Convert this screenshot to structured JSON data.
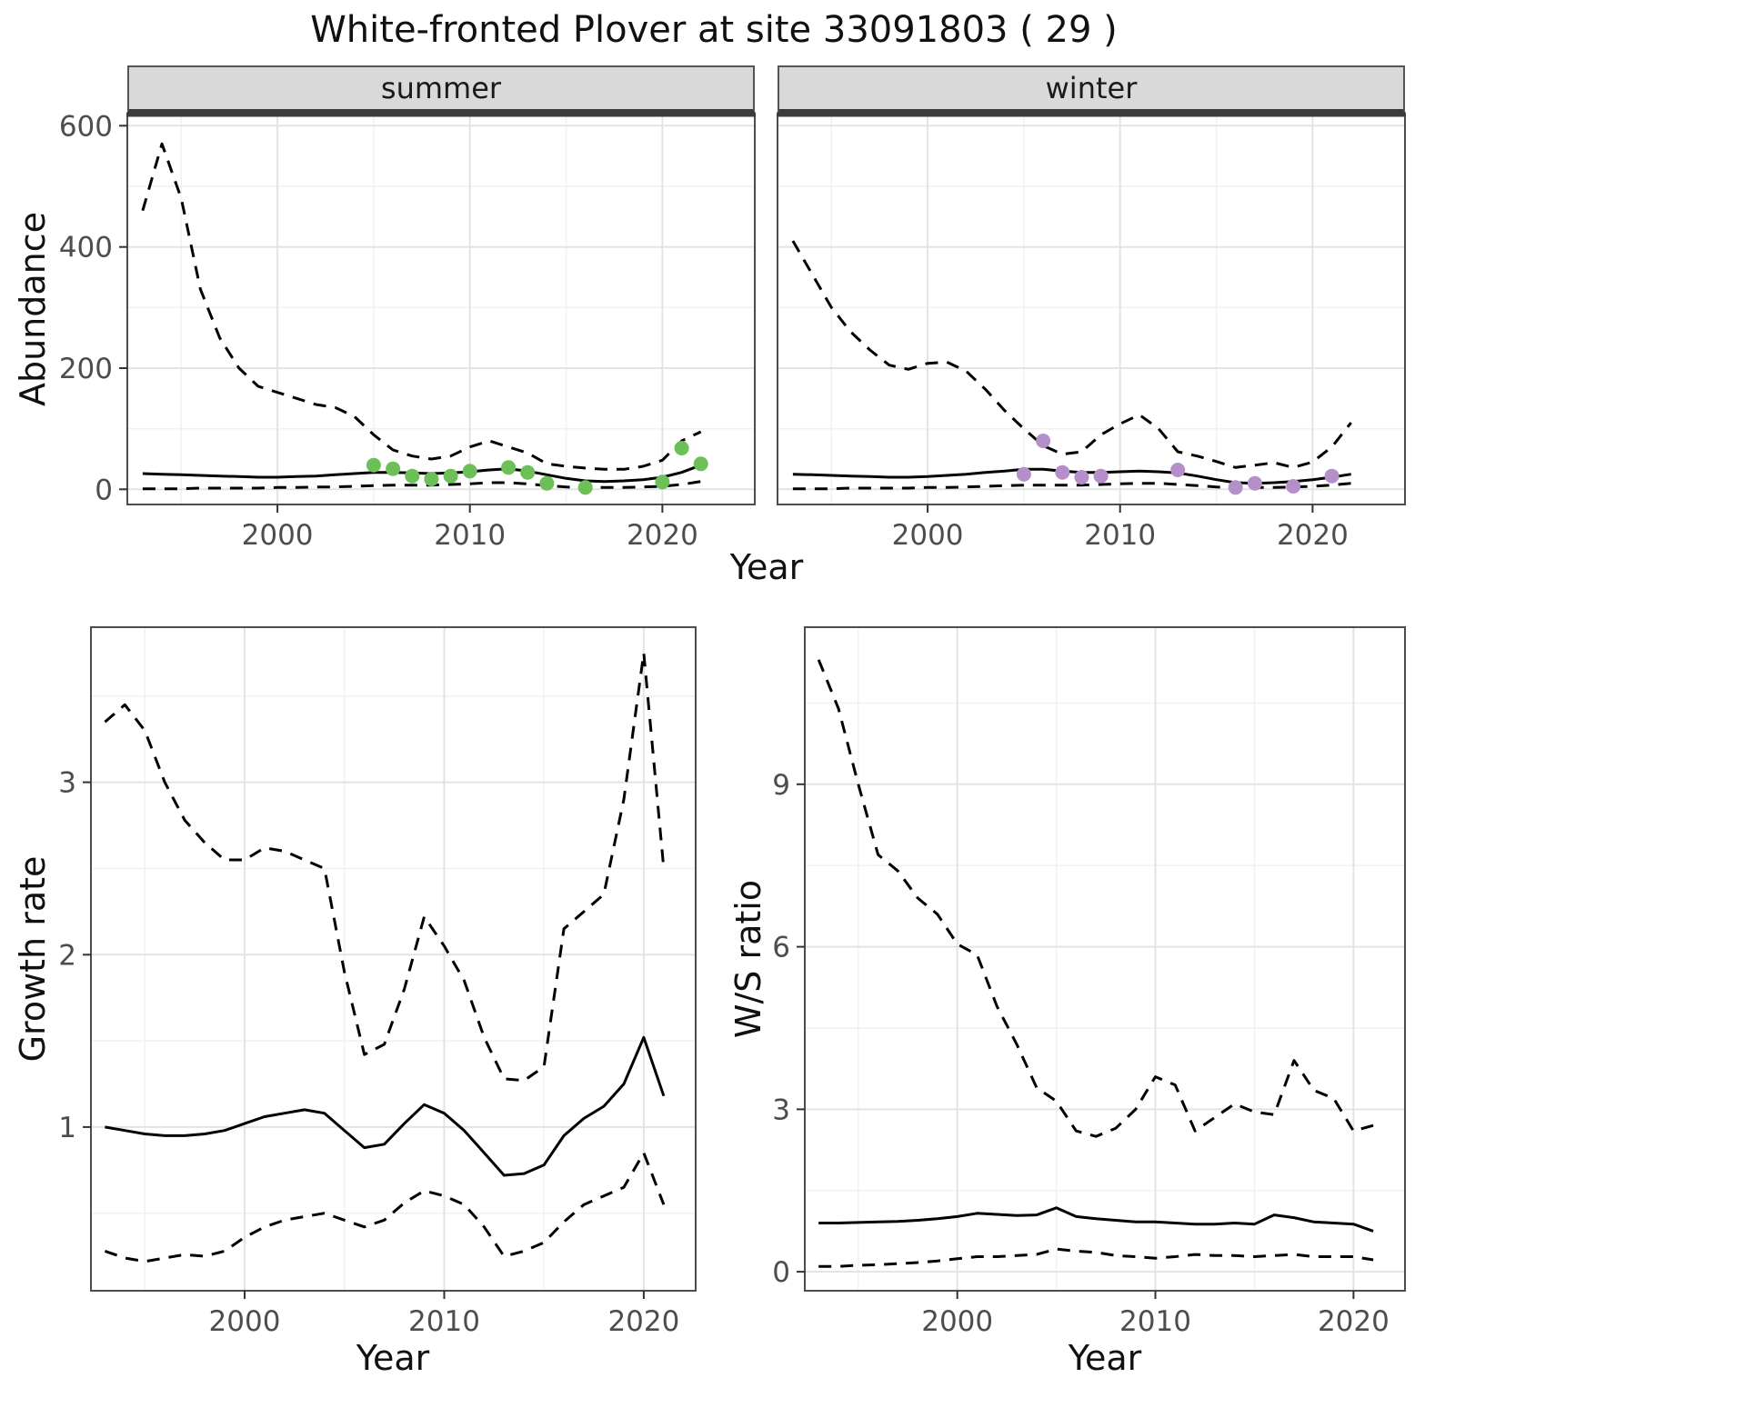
{
  "title": "White-fronted Plover at site 33091803 ( 29 )",
  "colors": {
    "summer_point": "#6dbf57",
    "winter_point": "#b58fc9",
    "line": "#000000",
    "strip_bg": "#d9d9d9",
    "strip_border": "#545454",
    "panel_border": "#4d4d4d",
    "grid_major": "#e3e3e3",
    "grid_minor": "#f1f1f1",
    "tick_text": "#4d4d4d"
  },
  "chart_data": [
    {
      "type": "line",
      "name": "abundance-summer",
      "facet_label": "summer",
      "xlabel": "Year",
      "ylabel": "Abundance",
      "xticks": [
        2000,
        2010,
        2020
      ],
      "yticks": [
        0,
        200,
        400,
        600
      ],
      "xlim": [
        1992,
        2025
      ],
      "ylim": [
        -25,
        620
      ],
      "grid": true,
      "years": [
        1993,
        1994,
        1995,
        1996,
        1997,
        1998,
        1999,
        2000,
        2001,
        2002,
        2003,
        2004,
        2005,
        2006,
        2007,
        2008,
        2009,
        2010,
        2011,
        2012,
        2013,
        2014,
        2015,
        2016,
        2017,
        2018,
        2019,
        2020,
        2021,
        2022
      ],
      "series": [
        {
          "name": "fit",
          "style": "solid",
          "values": [
            26,
            25,
            24,
            23,
            22,
            21,
            20,
            20,
            21,
            22,
            24,
            26,
            28,
            28,
            27,
            26,
            27,
            29,
            32,
            34,
            30,
            24,
            18,
            14,
            13,
            14,
            16,
            20,
            28,
            40
          ]
        },
        {
          "name": "upper-ci",
          "style": "dashed",
          "values": [
            460,
            570,
            480,
            330,
            250,
            200,
            170,
            160,
            150,
            140,
            135,
            120,
            90,
            65,
            55,
            50,
            55,
            70,
            80,
            70,
            60,
            42,
            38,
            35,
            33,
            33,
            38,
            48,
            80,
            95
          ]
        },
        {
          "name": "lower-ci",
          "style": "dashed",
          "values": [
            1,
            1,
            1,
            2,
            2,
            2,
            2,
            3,
            3,
            4,
            4,
            5,
            6,
            7,
            7,
            7,
            8,
            9,
            11,
            11,
            9,
            6,
            4,
            3,
            3,
            3,
            4,
            5,
            8,
            13
          ]
        }
      ],
      "points": {
        "name": "observed-counts",
        "color": "#6dbf57",
        "x": [
          2005,
          2006,
          2007,
          2008,
          2009,
          2010,
          2012,
          2013,
          2014,
          2016,
          2020,
          2021,
          2022
        ],
        "y": [
          40,
          34,
          22,
          17,
          22,
          30,
          36,
          28,
          10,
          3,
          12,
          68,
          42
        ]
      }
    },
    {
      "type": "line",
      "name": "abundance-winter",
      "facet_label": "winter",
      "xlabel": "Year",
      "ylabel": "Abundance",
      "xticks": [
        2000,
        2010,
        2020
      ],
      "yticks": [
        0,
        200,
        400,
        600
      ],
      "xlim": [
        1992,
        2025
      ],
      "ylim": [
        -25,
        620
      ],
      "grid": true,
      "years": [
        1993,
        1994,
        1995,
        1996,
        1997,
        1998,
        1999,
        2000,
        2001,
        2002,
        2003,
        2004,
        2005,
        2006,
        2007,
        2008,
        2009,
        2010,
        2011,
        2012,
        2013,
        2014,
        2015,
        2016,
        2017,
        2018,
        2019,
        2020,
        2021,
        2022
      ],
      "series": [
        {
          "name": "fit",
          "style": "solid",
          "values": [
            25,
            24,
            23,
            22,
            21,
            20,
            20,
            21,
            23,
            25,
            28,
            30,
            33,
            33,
            30,
            28,
            28,
            29,
            30,
            29,
            27,
            22,
            16,
            11,
            10,
            11,
            13,
            16,
            20,
            25
          ]
        },
        {
          "name": "upper-ci",
          "style": "dashed",
          "values": [
            410,
            355,
            300,
            260,
            230,
            205,
            198,
            208,
            210,
            195,
            165,
            130,
            100,
            72,
            58,
            62,
            90,
            108,
            123,
            100,
            62,
            55,
            46,
            36,
            40,
            44,
            36,
            45,
            70,
            110
          ]
        },
        {
          "name": "lower-ci",
          "style": "dashed",
          "values": [
            1,
            1,
            1,
            2,
            2,
            2,
            2,
            3,
            3,
            4,
            5,
            6,
            7,
            7,
            7,
            7,
            8,
            9,
            10,
            10,
            8,
            6,
            4,
            3,
            3,
            3,
            4,
            5,
            7,
            10
          ]
        }
      ],
      "points": {
        "name": "observed-counts",
        "color": "#b58fc9",
        "x": [
          2005,
          2006,
          2007,
          2008,
          2009,
          2013,
          2016,
          2017,
          2019,
          2021
        ],
        "y": [
          25,
          80,
          28,
          20,
          22,
          32,
          3,
          10,
          5,
          22
        ]
      }
    },
    {
      "type": "line",
      "name": "growth-rate",
      "xlabel": "Year",
      "ylabel": "Growth rate",
      "xticks": [
        2000,
        2010,
        2020
      ],
      "yticks": [
        1,
        2,
        3
      ],
      "xlim": [
        1992,
        2023
      ],
      "ylim": [
        0.05,
        3.9
      ],
      "grid": true,
      "years": [
        1993,
        1994,
        1995,
        1996,
        1997,
        1998,
        1999,
        2000,
        2001,
        2002,
        2003,
        2004,
        2005,
        2006,
        2007,
        2008,
        2009,
        2010,
        2011,
        2012,
        2013,
        2014,
        2015,
        2016,
        2017,
        2018,
        2019,
        2020,
        2021
      ],
      "series": [
        {
          "name": "fit",
          "style": "solid",
          "values": [
            1.0,
            0.98,
            0.96,
            0.95,
            0.95,
            0.96,
            0.98,
            1.02,
            1.06,
            1.08,
            1.1,
            1.08,
            0.98,
            0.88,
            0.9,
            1.02,
            1.13,
            1.08,
            0.98,
            0.85,
            0.72,
            0.73,
            0.78,
            0.95,
            1.05,
            1.12,
            1.25,
            1.52,
            1.18
          ]
        },
        {
          "name": "upper-ci",
          "style": "dashed",
          "values": [
            3.35,
            3.45,
            3.3,
            3.0,
            2.78,
            2.65,
            2.55,
            2.55,
            2.62,
            2.6,
            2.55,
            2.5,
            1.9,
            1.42,
            1.48,
            1.8,
            2.22,
            2.05,
            1.85,
            1.52,
            1.28,
            1.27,
            1.35,
            2.15,
            2.25,
            2.35,
            2.9,
            3.75,
            2.5
          ]
        },
        {
          "name": "lower-ci",
          "style": "dashed",
          "values": [
            0.28,
            0.24,
            0.22,
            0.24,
            0.26,
            0.25,
            0.28,
            0.36,
            0.42,
            0.46,
            0.48,
            0.5,
            0.46,
            0.42,
            0.46,
            0.56,
            0.63,
            0.6,
            0.55,
            0.42,
            0.25,
            0.28,
            0.33,
            0.45,
            0.55,
            0.6,
            0.65,
            0.85,
            0.55
          ]
        }
      ]
    },
    {
      "type": "line",
      "name": "ws-ratio",
      "xlabel": "Year",
      "ylabel": "W/S ratio",
      "xticks": [
        2000,
        2010,
        2020
      ],
      "yticks": [
        0,
        3,
        6,
        9
      ],
      "xlim": [
        1992,
        2023
      ],
      "ylim": [
        -0.35,
        11.9
      ],
      "grid": true,
      "years": [
        1993,
        1994,
        1995,
        1996,
        1997,
        1998,
        1999,
        2000,
        2001,
        2002,
        2003,
        2004,
        2005,
        2006,
        2007,
        2008,
        2009,
        2010,
        2011,
        2012,
        2013,
        2014,
        2015,
        2016,
        2017,
        2018,
        2019,
        2020,
        2021
      ],
      "series": [
        {
          "name": "fit",
          "style": "solid",
          "values": [
            0.9,
            0.9,
            0.91,
            0.92,
            0.93,
            0.95,
            0.98,
            1.02,
            1.08,
            1.06,
            1.04,
            1.05,
            1.18,
            1.02,
            0.98,
            0.95,
            0.92,
            0.92,
            0.9,
            0.88,
            0.88,
            0.9,
            0.88,
            1.05,
            1.0,
            0.92,
            0.9,
            0.88,
            0.75
          ]
        },
        {
          "name": "upper-ci",
          "style": "dashed",
          "values": [
            11.3,
            10.4,
            9.0,
            7.7,
            7.4,
            6.9,
            6.6,
            6.05,
            5.85,
            4.9,
            4.2,
            3.4,
            3.15,
            2.6,
            2.5,
            2.65,
            3.0,
            3.6,
            3.45,
            2.6,
            2.85,
            3.1,
            2.95,
            2.9,
            3.9,
            3.35,
            3.2,
            2.6,
            2.7
          ]
        },
        {
          "name": "lower-ci",
          "style": "dashed",
          "values": [
            0.1,
            0.1,
            0.12,
            0.13,
            0.15,
            0.17,
            0.2,
            0.24,
            0.28,
            0.28,
            0.3,
            0.32,
            0.42,
            0.38,
            0.36,
            0.3,
            0.28,
            0.25,
            0.28,
            0.32,
            0.3,
            0.3,
            0.28,
            0.3,
            0.32,
            0.28,
            0.28,
            0.28,
            0.22
          ]
        }
      ]
    }
  ]
}
